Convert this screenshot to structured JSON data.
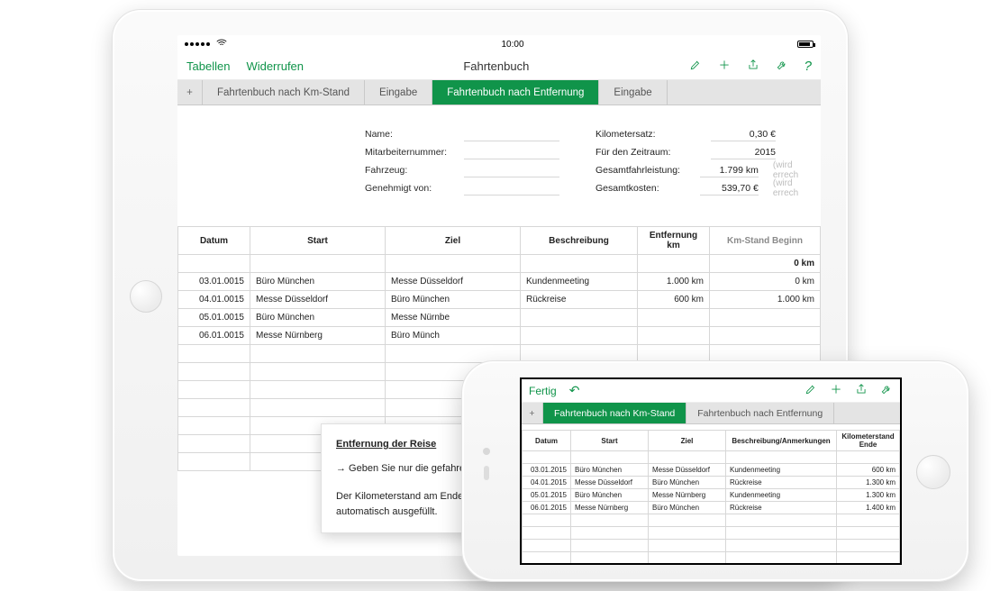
{
  "colors": {
    "accent": "#10944a",
    "tab_bg": "#e4e4e4",
    "hairline": "#d7d7d7",
    "muted": "#8a8a8a"
  },
  "ipad": {
    "status": {
      "time": "10:00"
    },
    "nav": {
      "left1": "Tabellen",
      "left2": "Widerrufen",
      "title": "Fahrtenbuch",
      "icons": [
        "wrench-paint",
        "plus",
        "share",
        "wrench",
        "help"
      ]
    },
    "tabs": [
      {
        "label": "Fahrtenbuch nach Km-Stand",
        "active": false
      },
      {
        "label": "Eingabe",
        "active": false
      },
      {
        "label": "Fahrtenbuch nach Entfernung",
        "active": true
      },
      {
        "label": "Eingabe",
        "active": false
      }
    ],
    "form": {
      "left_labels": [
        "Name:",
        "Mitarbeiternummer:",
        "Fahrzeug:",
        "Genehmigt von:"
      ],
      "right": [
        {
          "label": "Kilometersatz:",
          "value": "0,30 €",
          "note": ""
        },
        {
          "label": "Für den Zeitraum:",
          "value": "2015",
          "note": ""
        },
        {
          "label": "Gesamtfahrleistung:",
          "value": "1.799 km",
          "note": "(wird errech"
        },
        {
          "label": "Gesamtkosten:",
          "value": "539,70 €",
          "note": "(wird errech"
        }
      ]
    },
    "table": {
      "headers": [
        "Datum",
        "Start",
        "Ziel",
        "Beschreibung",
        "Entfernung\nkm",
        "Km-Stand Beginn"
      ],
      "header_muted_index": 5,
      "sub_zero": "0 km",
      "rows": [
        [
          "03.01.0015",
          "Büro München",
          "Messe Düsseldorf",
          "Kundenmeeting",
          "1.000 km",
          "0 km"
        ],
        [
          "04.01.0015",
          "Messe Düsseldorf",
          "Büro München",
          "Rückreise",
          "600 km",
          "1.000 km"
        ],
        [
          "05.01.0015",
          "Büro München",
          "Messe Nürnbe",
          "",
          "",
          ""
        ],
        [
          "06.01.0015",
          "Messe Nürnberg",
          "Büro Münch",
          "",
          "",
          ""
        ]
      ],
      "blank_rows": 7
    },
    "tip": {
      "title": "Entfernung der Reise",
      "line1": "→ Geben Sie nur die gefahrene",
      "line2": "Der Kilometerstand am Ende d",
      "line3": "automatisch ausgefüllt."
    }
  },
  "iphone": {
    "nav": {
      "done": "Fertig",
      "undo": "↶",
      "icons": [
        "wrench-paint",
        "plus",
        "share",
        "wrench"
      ]
    },
    "tabs": [
      {
        "label": "Fahrtenbuch nach Km-Stand",
        "active": true
      },
      {
        "label": "Fahrtenbuch nach Entfernung",
        "active": false
      }
    ],
    "table": {
      "headers": [
        "Datum",
        "Start",
        "Ziel",
        "Beschreibung/Anmerkungen",
        "Kilometerstand\nEnde"
      ],
      "rows": [
        [
          "03.01.2015",
          "Büro München",
          "Messe Düsseldorf",
          "Kundenmeeting",
          "600 km"
        ],
        [
          "04.01.2015",
          "Messe Düsseldorf",
          "Büro München",
          "Rückreise",
          "1.300 km"
        ],
        [
          "05.01.2015",
          "Büro München",
          "Messe Nürnberg",
          "Kundenmeeting",
          "1.300 km"
        ],
        [
          "06.01.2015",
          "Messe Nürnberg",
          "Büro München",
          "Rückreise",
          "1.400 km"
        ]
      ],
      "blank_rows": 5
    }
  }
}
